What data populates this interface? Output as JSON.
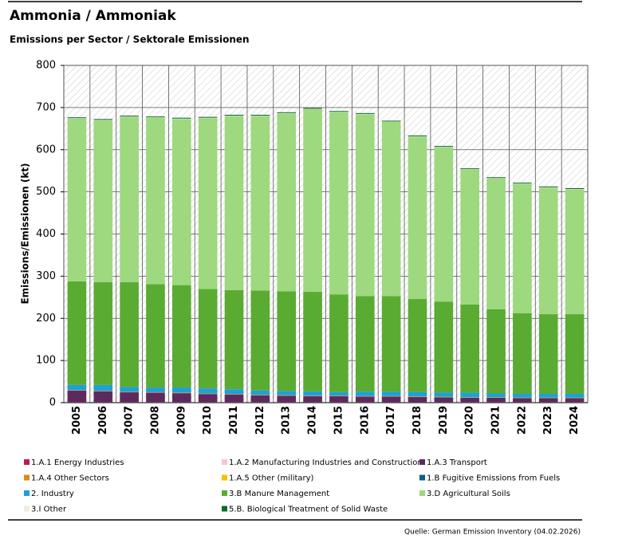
{
  "chart_data": {
    "type": "stacked_bar",
    "title": "Ammonia / Ammoniak",
    "subtitle": "Emissions per Sector / Sektorale Emissionen",
    "y_label": "Emissions/Emissionen (kt)",
    "source": "Quelle: German Emission Inventory (04.02.2026)",
    "categories": [
      "2005",
      "2006",
      "2007",
      "2008",
      "2009",
      "2010",
      "2011",
      "2012",
      "2013",
      "2014",
      "2015",
      "2016",
      "2017",
      "2018",
      "2019",
      "2020",
      "2021",
      "2022",
      "2023",
      "2024"
    ],
    "ylim": [
      0,
      800
    ],
    "yticks": [
      0,
      100,
      200,
      300,
      400,
      500,
      600,
      700,
      800
    ],
    "grid": true,
    "series": [
      {
        "name": "1.A.1 Energy Industries",
        "color": "#c2185b",
        "values": [
          0.5,
          0.5,
          0.5,
          0.5,
          0.5,
          0.5,
          0.5,
          0.5,
          0.5,
          0.5,
          0.5,
          0.5,
          0.5,
          0.5,
          0.5,
          0.5,
          0.5,
          0.5,
          0.5,
          0.5
        ]
      },
      {
        "name": "1.A.2 Manufacturing Industries and Construction",
        "color": "#f4c6d8",
        "values": [
          1,
          1,
          1,
          1,
          1,
          1,
          1,
          1,
          1,
          1,
          1,
          1,
          1,
          1,
          1,
          1,
          1,
          1,
          1,
          1
        ]
      },
      {
        "name": "1.A.3 Transport",
        "color": "#5e2a5e",
        "values": [
          27,
          25,
          23,
          22,
          21,
          19,
          18,
          16,
          15,
          14,
          14,
          13,
          13,
          12,
          11,
          10,
          10,
          9,
          9,
          9
        ]
      },
      {
        "name": "1.A.4 Other Sectors",
        "color": "#d98c1a",
        "values": [
          1,
          1,
          1,
          1,
          1,
          1,
          1,
          1,
          1,
          1,
          1,
          1,
          1,
          1,
          1,
          1,
          1,
          1,
          1,
          1
        ]
      },
      {
        "name": "1.A.5 Other (military)",
        "color": "#f2c200",
        "values": [
          0.1,
          0.1,
          0.1,
          0.1,
          0.1,
          0.1,
          0.1,
          0.1,
          0.1,
          0.1,
          0.1,
          0.1,
          0.1,
          0.1,
          0.1,
          0.1,
          0.1,
          0.1,
          0.1,
          0.1
        ]
      },
      {
        "name": "1.B Fugitive Emissions from Fuels",
        "color": "#0b5d8a",
        "values": [
          0.2,
          0.2,
          0.2,
          0.2,
          0.2,
          0.2,
          0.2,
          0.2,
          0.2,
          0.2,
          0.2,
          0.2,
          0.2,
          0.2,
          0.2,
          0.2,
          0.2,
          0.2,
          0.2,
          0.2
        ]
      },
      {
        "name": "2. Industry",
        "color": "#1ea0d8",
        "values": [
          12,
          14,
          11,
          11,
          12,
          12,
          11,
          10,
          10,
          10,
          8,
          10,
          10,
          10,
          10,
          11,
          9,
          9,
          9,
          9
        ]
      },
      {
        "name": "3.B Manure Management",
        "color": "#5aab32",
        "values": [
          246,
          244,
          249,
          245,
          243,
          236,
          235,
          237,
          236,
          236,
          232,
          227,
          227,
          221,
          216,
          209,
          200,
          191,
          189,
          189
        ]
      },
      {
        "name": "3.D Agricultural Soils",
        "color": "#9ed87f",
        "values": [
          386,
          384,
          392,
          395,
          394,
          405,
          413,
          414,
          422,
          433,
          432,
          431,
          413,
          385,
          366,
          320,
          310,
          307,
          300,
          296
        ]
      },
      {
        "name": "3.I Other",
        "color": "#e6f2dc",
        "values": [
          1,
          1,
          1,
          1,
          1,
          1,
          1,
          1,
          1,
          1,
          1,
          1,
          1,
          1,
          1,
          1,
          1,
          1,
          1,
          1
        ]
      },
      {
        "name": "5.B. Biological Treatment of Solid Waste",
        "color": "#0e6b2e",
        "values": [
          2,
          2,
          2,
          2,
          2,
          2,
          2,
          2,
          2,
          2,
          2,
          2,
          2,
          2,
          2,
          2,
          2,
          2,
          2,
          2
        ]
      }
    ]
  }
}
